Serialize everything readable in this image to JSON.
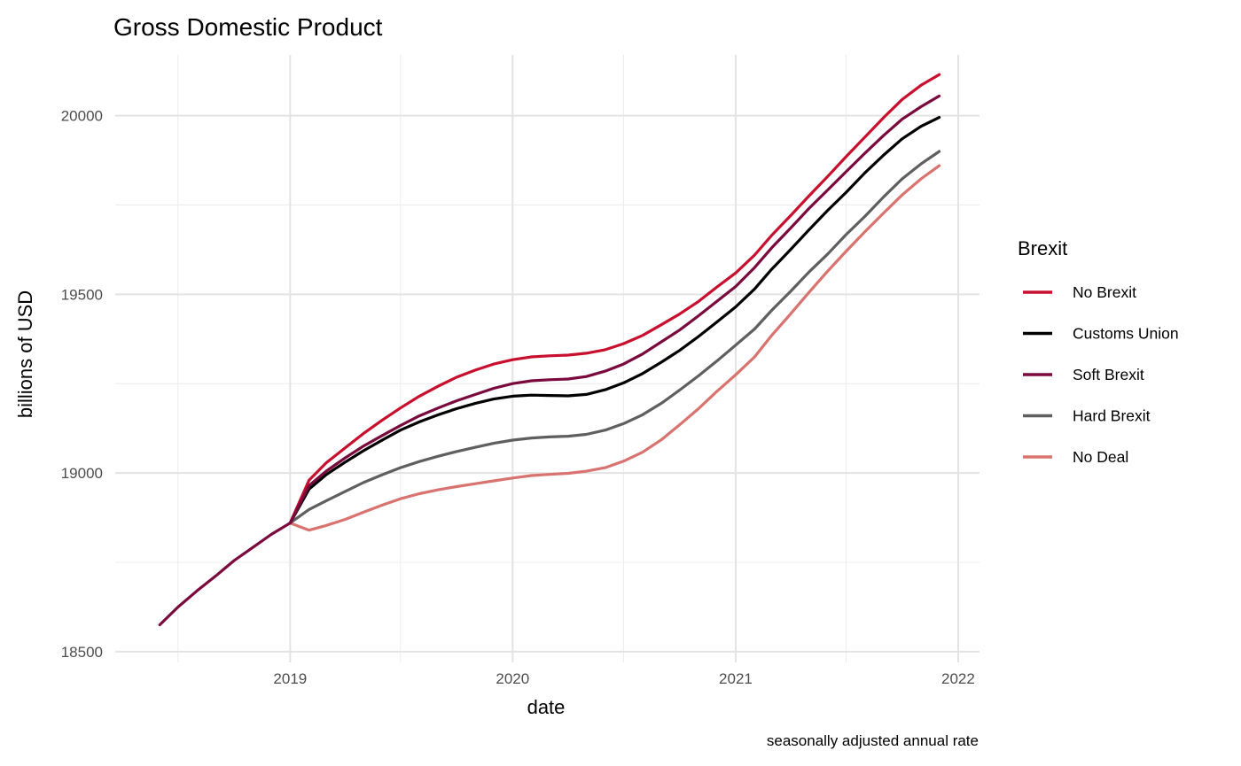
{
  "chart_data": {
    "type": "line",
    "title": "Gross Domestic Product",
    "xlabel": "date",
    "ylabel": "billions of USD",
    "caption": "seasonally adjusted annual rate",
    "legend_title": "Brexit",
    "legend_position": "right",
    "grid": true,
    "xlim": [
      "2018-03-20",
      "2022-02-05"
    ],
    "ylim": [
      18470,
      20170
    ],
    "x_ticks": [
      "2019",
      "2020",
      "2021",
      "2022"
    ],
    "y_ticks": [
      18500,
      19000,
      19500,
      20000
    ],
    "history": {
      "x": [
        "2018-06-01",
        "2018-07-01",
        "2018-08-01",
        "2018-09-01",
        "2018-10-01",
        "2018-11-01",
        "2018-12-01",
        "2019-01-01"
      ],
      "values": [
        18575,
        18625,
        18670,
        18712,
        18755,
        18792,
        18828,
        18860
      ]
    },
    "x": [
      "2019-01-01",
      "2019-02-01",
      "2019-03-01",
      "2019-04-01",
      "2019-05-01",
      "2019-06-01",
      "2019-07-01",
      "2019-08-01",
      "2019-09-01",
      "2019-10-01",
      "2019-11-01",
      "2019-12-01",
      "2020-01-01",
      "2020-02-01",
      "2020-03-01",
      "2020-04-01",
      "2020-05-01",
      "2020-06-01",
      "2020-07-01",
      "2020-08-01",
      "2020-09-01",
      "2020-10-01",
      "2020-11-01",
      "2020-12-01",
      "2021-01-01",
      "2021-02-01",
      "2021-03-01",
      "2021-04-01",
      "2021-05-01",
      "2021-06-01",
      "2021-07-01",
      "2021-08-01",
      "2021-09-01",
      "2021-10-01",
      "2021-11-01",
      "2021-12-01"
    ],
    "series": [
      {
        "name": "No Brexit",
        "color": "#c8102e",
        "values": [
          18860,
          18980,
          19028,
          19070,
          19110,
          19148,
          19182,
          19215,
          19243,
          19268,
          19288,
          19305,
          19317,
          19325,
          19328,
          19330,
          19335,
          19345,
          19362,
          19385,
          19415,
          19445,
          19480,
          19520,
          19560,
          19610,
          19665,
          19720,
          19775,
          19830,
          19885,
          19940,
          19995,
          20045,
          20085,
          20115
        ]
      },
      {
        "name": "Customs Union",
        "color": "#000000",
        "values": [
          18860,
          18955,
          18995,
          19030,
          19062,
          19092,
          19120,
          19143,
          19163,
          19180,
          19195,
          19207,
          19215,
          19218,
          19217,
          19216,
          19220,
          19233,
          19252,
          19278,
          19310,
          19343,
          19382,
          19422,
          19465,
          19515,
          19570,
          19625,
          19680,
          19735,
          19785,
          19840,
          19890,
          19935,
          19970,
          19995
        ]
      },
      {
        "name": "Soft Brexit",
        "color": "#7a0a3d",
        "values": [
          18860,
          18965,
          19005,
          19042,
          19075,
          19105,
          19133,
          19160,
          19182,
          19202,
          19220,
          19237,
          19250,
          19258,
          19261,
          19263,
          19270,
          19285,
          19305,
          19333,
          19367,
          19400,
          19440,
          19480,
          19522,
          19575,
          19630,
          19685,
          19740,
          19792,
          19843,
          19895,
          19945,
          19990,
          20025,
          20055
        ]
      },
      {
        "name": "Hard Brexit",
        "color": "#5f5f5f",
        "values": [
          18860,
          18898,
          18922,
          18948,
          18973,
          18995,
          19015,
          19032,
          19047,
          19060,
          19072,
          19083,
          19092,
          19098,
          19101,
          19103,
          19108,
          19120,
          19138,
          19163,
          19195,
          19232,
          19272,
          19313,
          19358,
          19403,
          19455,
          19508,
          19562,
          19613,
          19667,
          19718,
          19773,
          19823,
          19865,
          19900
        ]
      },
      {
        "name": "No Deal",
        "color": "#d9736f",
        "values": [
          18860,
          18840,
          18853,
          18870,
          18890,
          18910,
          18928,
          18942,
          18953,
          18962,
          18970,
          18978,
          18986,
          18993,
          18996,
          18999,
          19005,
          19015,
          19033,
          19058,
          19093,
          19135,
          19180,
          19228,
          19275,
          19325,
          19385,
          19445,
          19505,
          19565,
          19620,
          19675,
          19728,
          19778,
          19823,
          19860
        ]
      }
    ]
  }
}
